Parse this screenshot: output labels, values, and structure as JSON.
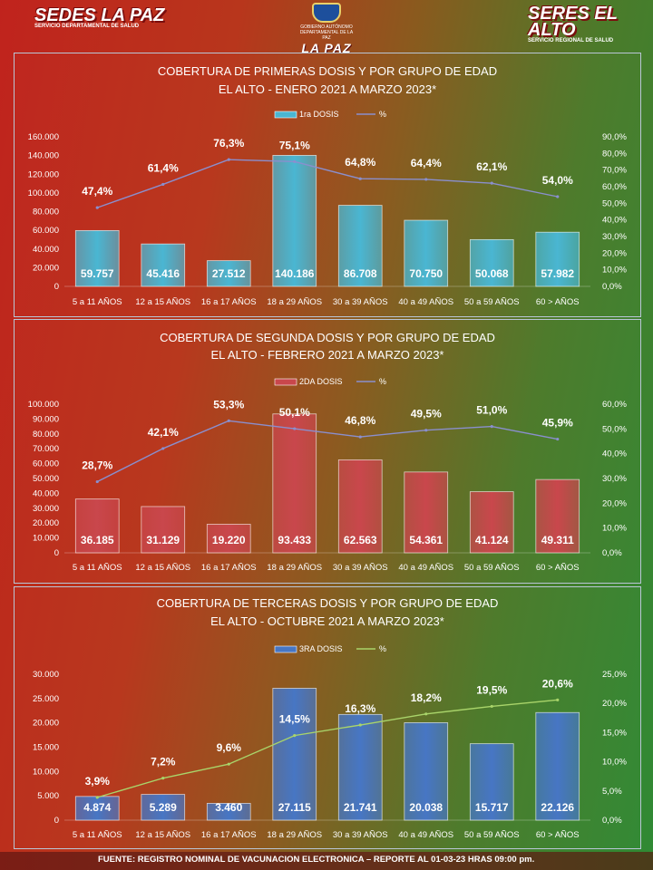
{
  "header": {
    "left_logo": "SEDES LA PAZ",
    "left_logo_sub": "SERVICIO DEPARTAMENTAL DE SALUD",
    "center_logo": "LA PAZ",
    "center_logo_sub": "GOBIERNO AUTÓNOMO DEPARTAMENTAL DE LA PAZ",
    "right_logo": "SERES EL ALTO",
    "right_logo_sub": "SERVICIO REGIONAL DE SALUD"
  },
  "footer": {
    "source": "FUENTE: REGISTRO NOMINAL DE VACUNACION ELECTRONICA – REPORTE AL 01-03-23 HRAS 09:00 pm."
  },
  "colors": {
    "chart1_bar": "#4ab6d2",
    "chart2_bar": "#c9474c",
    "chart3_bar": "#4776c4",
    "chart1_line": "#8a8fce",
    "chart2_line": "#8a8fce",
    "chart3_line": "#a9d46a"
  },
  "chart_data": [
    {
      "type": "bar",
      "title": "COBERTURA DE PRIMERAS DOSIS Y POR GRUPO DE EDAD",
      "subtitle": "EL ALTO - ENERO 2021 A MARZO 2023*",
      "categories": [
        "5 a 11 AÑOS",
        "12 a 15 AÑOS",
        "16 a 17 AÑOS",
        "18 a 29 AÑOS",
        "30 a 39 AÑOS",
        "40 a 49 AÑOS",
        "50 a 59 AÑOS",
        "60 > AÑOS"
      ],
      "series": [
        {
          "name": "1ra DOSIS",
          "kind": "bar",
          "values": [
            59757,
            45416,
            27512,
            140186,
            86708,
            70750,
            50068,
            57982
          ],
          "labels": [
            "59.757",
            "45.416",
            "27.512",
            "140.186",
            "86.708",
            "70.750",
            "50.068",
            "57.982"
          ]
        },
        {
          "name": "%",
          "kind": "line",
          "axis": "right",
          "values": [
            47.4,
            61.4,
            76.3,
            75.1,
            64.8,
            64.4,
            62.1,
            54.0
          ],
          "labels": [
            "47,4%",
            "61,4%",
            "76,3%",
            "75,1%",
            "64,8%",
            "64,4%",
            "62,1%",
            "54,0%"
          ]
        }
      ],
      "ylim": [
        0,
        160000
      ],
      "ytick_step": 20000,
      "yticks": [
        "0",
        "20.000",
        "40.000",
        "60.000",
        "80.000",
        "100.000",
        "120.000",
        "140.000",
        "160.000"
      ],
      "y2lim": [
        0,
        90
      ],
      "y2tick_step": 10,
      "y2ticks": [
        "0,0%",
        "10,0%",
        "20,0%",
        "30,0%",
        "40,0%",
        "50,0%",
        "60,0%",
        "70,0%",
        "80,0%",
        "90,0%"
      ],
      "legend": "top-center"
    },
    {
      "type": "bar",
      "title": "COBERTURA DE SEGUNDA DOSIS Y POR GRUPO DE EDAD",
      "subtitle": "EL ALTO - FEBRERO 2021 A MARZO 2023*",
      "categories": [
        "5 a 11 AÑOS",
        "12 a 15 AÑOS",
        "16 a 17 AÑOS",
        "18 a 29 AÑOS",
        "30 a 39 AÑOS",
        "40 a 49 AÑOS",
        "50 a 59 AÑOS",
        "60 > AÑOS"
      ],
      "series": [
        {
          "name": "2DA DOSIS",
          "kind": "bar",
          "values": [
            36185,
            31129,
            19220,
            93433,
            62563,
            54361,
            41124,
            49311
          ],
          "labels": [
            "36.185",
            "31.129",
            "19.220",
            "93.433",
            "62.563",
            "54.361",
            "41.124",
            "49.311"
          ]
        },
        {
          "name": "%",
          "kind": "line",
          "axis": "right",
          "values": [
            28.7,
            42.1,
            53.3,
            50.1,
            46.8,
            49.5,
            51.0,
            45.9
          ],
          "labels": [
            "28,7%",
            "42,1%",
            "53,3%",
            "50,1%",
            "46,8%",
            "49,5%",
            "51,0%",
            "45,9%"
          ]
        }
      ],
      "ylim": [
        0,
        100000
      ],
      "ytick_step": 10000,
      "yticks": [
        "0",
        "10.000",
        "20.000",
        "30.000",
        "40.000",
        "50.000",
        "60.000",
        "70.000",
        "80.000",
        "90.000",
        "100.000"
      ],
      "y2lim": [
        0,
        60
      ],
      "y2tick_step": 10,
      "y2ticks": [
        "0,0%",
        "10,0%",
        "20,0%",
        "30,0%",
        "40,0%",
        "50,0%",
        "60,0%"
      ],
      "legend": "top-center"
    },
    {
      "type": "bar",
      "title": "COBERTURA DE TERCERAS DOSIS Y POR GRUPO DE EDAD",
      "subtitle": "EL ALTO  - OCTUBRE 2021 A MARZO 2023*",
      "categories": [
        "5 a 11 AÑOS",
        "12 a 15 AÑOS",
        "16 a 17 AÑOS",
        "18 a 29 AÑOS",
        "30 a 39 AÑOS",
        "40 a 49 AÑOS",
        "50 a 59 AÑOS",
        "60 > AÑOS"
      ],
      "series": [
        {
          "name": "3RA DOSIS",
          "kind": "bar",
          "values": [
            4874,
            5289,
            3460,
            27115,
            21741,
            20038,
            15717,
            22126
          ],
          "labels": [
            "4.874",
            "5.289",
            "3.460",
            "27.115",
            "21.741",
            "20.038",
            "15.717",
            "22.126"
          ]
        },
        {
          "name": "%",
          "kind": "line",
          "axis": "right",
          "values": [
            3.9,
            7.2,
            9.6,
            14.5,
            16.3,
            18.2,
            19.5,
            20.6
          ],
          "labels": [
            "3,9%",
            "7,2%",
            "9,6%",
            "14,5%",
            "16,3%",
            "18,2%",
            "19,5%",
            "20,6%"
          ]
        }
      ],
      "ylim": [
        0,
        30000
      ],
      "ytick_step": 5000,
      "yticks": [
        "0",
        "5.000",
        "10.000",
        "15.000",
        "20.000",
        "25.000",
        "30.000"
      ],
      "y2lim": [
        0,
        25
      ],
      "y2tick_step": 5,
      "y2ticks": [
        "0,0%",
        "5,0%",
        "10,0%",
        "15,0%",
        "20,0%",
        "25,0%"
      ],
      "legend": "top-center"
    }
  ]
}
